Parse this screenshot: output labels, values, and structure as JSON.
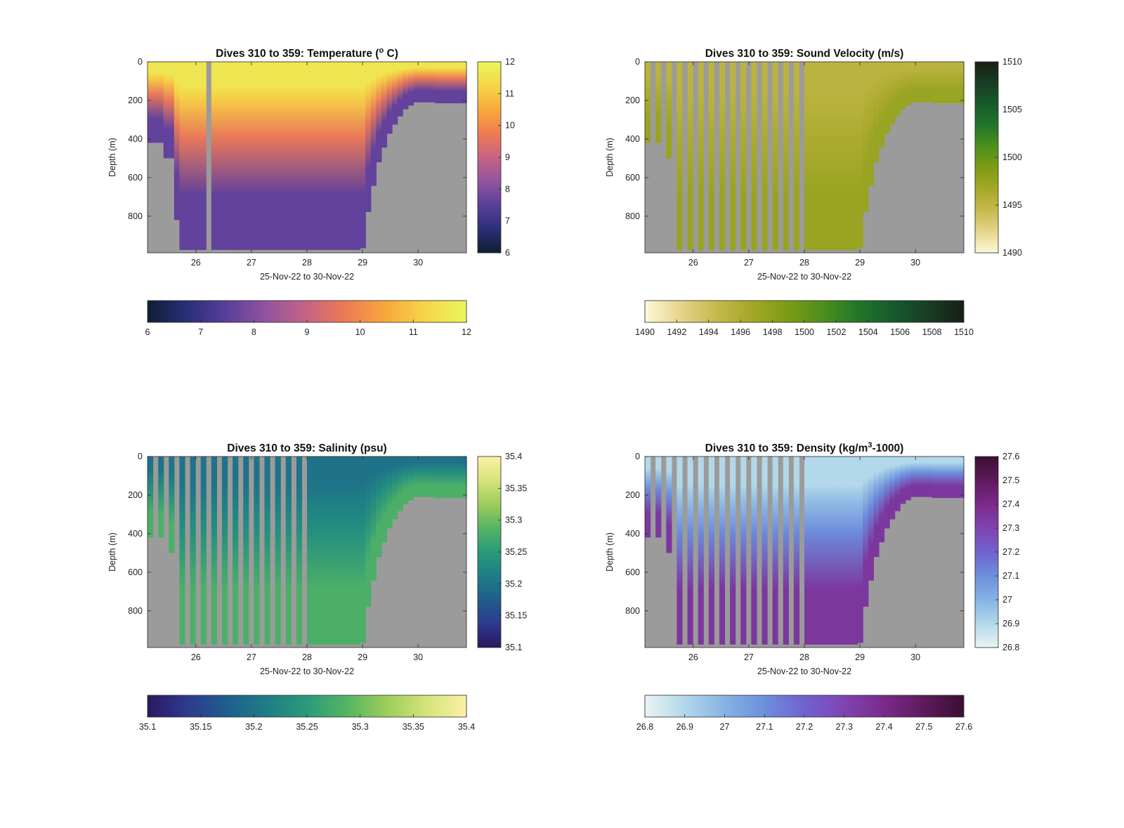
{
  "figure": {
    "background": "#ffffff",
    "land_color": "#9b9b9b"
  },
  "chart_data": [
    {
      "type": "heatmap",
      "title_prefix": "Dives 310 to 359: Temperature (",
      "title_sup": "o",
      "title_suffix": " C)",
      "ylabel": "Depth (m)",
      "xlabel": "25-Nov-22 to 30-Nov-22",
      "x_ticks": [
        "26",
        "27",
        "28",
        "29",
        "30"
      ],
      "x_range": [
        25.13,
        30.87
      ],
      "y_ticks": [
        "0",
        "200",
        "400",
        "600",
        "800"
      ],
      "ylim": [
        0,
        990
      ],
      "y_reversed": true,
      "colorbar": {
        "right_ticks": [
          "6",
          "7",
          "8",
          "9",
          "10",
          "11",
          "12"
        ],
        "bottom_ticks": [
          "6",
          "7",
          "8",
          "9",
          "10",
          "11",
          "12"
        ],
        "range": [
          6,
          12
        ],
        "colors": [
          "#0f1e33",
          "#2a2f7a",
          "#5a3f9c",
          "#93549e",
          "#c86384",
          "#ee7c52",
          "#f9a93b",
          "#f5d64a",
          "#e9f65a"
        ]
      },
      "value_profile": {
        "surface": 11.6,
        "mixed_depth": 130,
        "deep": 7.6
      },
      "striped": false
    },
    {
      "type": "heatmap",
      "title_prefix": "Dives 310 to 359: Sound Velocity (m/s)",
      "title_sup": "",
      "title_suffix": "",
      "ylabel": "Depth (m)",
      "xlabel": "25-Nov-22 to 30-Nov-22",
      "x_ticks": [
        "26",
        "27",
        "28",
        "29",
        "30"
      ],
      "x_range": [
        25.13,
        30.87
      ],
      "y_ticks": [
        "0",
        "200",
        "400",
        "600",
        "800"
      ],
      "ylim": [
        0,
        990
      ],
      "y_reversed": true,
      "colorbar": {
        "right_ticks": [
          "1490",
          "1495",
          "1500",
          "1505",
          "1510"
        ],
        "bottom_ticks": [
          "1490",
          "1492",
          "1494",
          "1496",
          "1498",
          "1500",
          "1502",
          "1504",
          "1506",
          "1508",
          "1510"
        ],
        "range": [
          1490,
          1510
        ],
        "colors": [
          "#fdf8d8",
          "#e6d48c",
          "#c7b94c",
          "#a5a829",
          "#7e9c15",
          "#4e8f1c",
          "#23762a",
          "#175a2c",
          "#183d24",
          "#181e15"
        ]
      },
      "value_profile": {
        "surface": 1495.2,
        "mixed_depth": 150,
        "deep": 1497.4
      },
      "striped": true
    },
    {
      "type": "heatmap",
      "title_prefix": "Dives 310 to 359: Salinity (psu)",
      "title_sup": "",
      "title_suffix": "",
      "ylabel": "Depth (m)",
      "xlabel": "25-Nov-22 to 30-Nov-22",
      "x_ticks": [
        "26",
        "27",
        "28",
        "29",
        "30"
      ],
      "x_range": [
        25.13,
        30.87
      ],
      "y_ticks": [
        "0",
        "200",
        "400",
        "600",
        "800"
      ],
      "ylim": [
        0,
        990
      ],
      "y_reversed": true,
      "colorbar": {
        "right_ticks": [
          "35.1",
          "35.15",
          "35.2",
          "35.25",
          "35.3",
          "35.35",
          "35.4"
        ],
        "bottom_ticks": [
          "35.1",
          "35.15",
          "35.2",
          "35.25",
          "35.3",
          "35.35",
          "35.4"
        ],
        "range": [
          35.1,
          35.4
        ],
        "colors": [
          "#2a1860",
          "#2e3a8f",
          "#1f5e8c",
          "#1f7d86",
          "#2a9a7a",
          "#55b463",
          "#9ccd5c",
          "#d6e37a",
          "#fbf0a6"
        ]
      },
      "value_profile": {
        "surface": 35.2,
        "mixed_depth": 150,
        "deep": 35.28
      },
      "striped": true
    },
    {
      "type": "heatmap",
      "title_prefix": "Dives 310 to 359: Density (kg/m",
      "title_sup": "3",
      "title_suffix": "-1000)",
      "ylabel": "Depth (m)",
      "xlabel": "25-Nov-22 to 30-Nov-22",
      "x_ticks": [
        "26",
        "27",
        "28",
        "29",
        "30"
      ],
      "x_range": [
        25.13,
        30.87
      ],
      "y_ticks": [
        "0",
        "200",
        "400",
        "600",
        "800"
      ],
      "ylim": [
        0,
        990
      ],
      "y_reversed": true,
      "colorbar": {
        "right_ticks": [
          "26.8",
          "26.9",
          "27",
          "27.1",
          "27.2",
          "27.3",
          "27.4",
          "27.5",
          "27.6"
        ],
        "bottom_ticks": [
          "26.8",
          "26.9",
          "27",
          "27.1",
          "27.2",
          "27.3",
          "27.4",
          "27.5",
          "27.6"
        ],
        "range": [
          26.8,
          27.6
        ],
        "colors": [
          "#e9f4f3",
          "#b2d8ea",
          "#86b3e3",
          "#6c8fdc",
          "#7062cf",
          "#7f44b2",
          "#7a2a8a",
          "#5e1a5c",
          "#3a0f32"
        ]
      },
      "value_profile": {
        "surface": 26.9,
        "mixed_depth": 150,
        "deep": 27.35
      },
      "striped": true
    }
  ]
}
